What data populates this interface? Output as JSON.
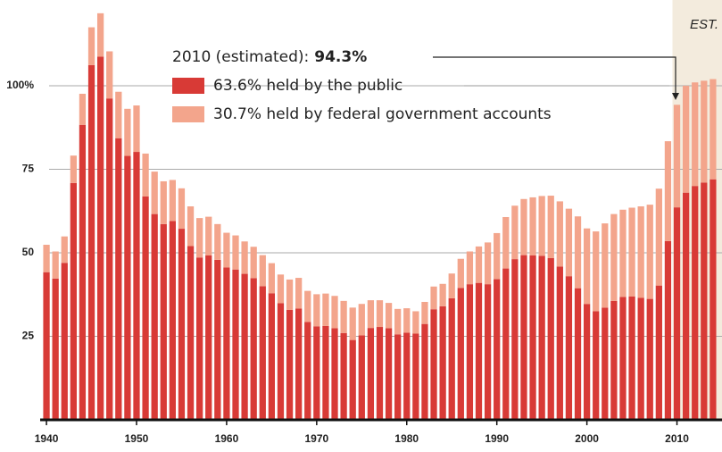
{
  "chart_data": {
    "type": "stacked_bar",
    "x": [
      1940,
      1941,
      1942,
      1943,
      1944,
      1945,
      1946,
      1947,
      1948,
      1949,
      1950,
      1951,
      1952,
      1953,
      1954,
      1955,
      1956,
      1957,
      1958,
      1959,
      1960,
      1961,
      1962,
      1963,
      1964,
      1965,
      1966,
      1967,
      1968,
      1969,
      1970,
      1971,
      1972,
      1973,
      1974,
      1975,
      1976,
      1977,
      1978,
      1979,
      1980,
      1981,
      1982,
      1983,
      1984,
      1985,
      1986,
      1987,
      1988,
      1989,
      1990,
      1991,
      1992,
      1993,
      1994,
      1995,
      1996,
      1997,
      1998,
      1999,
      2000,
      2001,
      2002,
      2003,
      2004,
      2005,
      2006,
      2007,
      2008,
      2009,
      2010,
      2011,
      2012,
      2013,
      2014
    ],
    "series": [
      {
        "name": "63.6% held by the public",
        "color": "#d83a36",
        "values": [
          44.2,
          42.3,
          47.0,
          70.9,
          88.3,
          106.2,
          108.7,
          96.2,
          84.3,
          79.0,
          80.2,
          66.9,
          61.6,
          58.6,
          59.5,
          57.2,
          52.0,
          48.6,
          49.2,
          47.9,
          45.6,
          45.0,
          43.7,
          42.4,
          40.0,
          37.9,
          34.9,
          32.9,
          33.3,
          29.3,
          28.0,
          28.1,
          27.4,
          26.0,
          23.9,
          25.3,
          27.5,
          27.8,
          27.4,
          25.6,
          26.1,
          25.8,
          28.7,
          33.1,
          34.0,
          36.4,
          39.5,
          40.6,
          41.0,
          40.6,
          42.1,
          45.3,
          48.1,
          49.3,
          49.2,
          49.1,
          48.4,
          45.9,
          43.0,
          39.4,
          34.7,
          32.5,
          33.6,
          35.6,
          36.8,
          36.9,
          36.5,
          36.2,
          40.2,
          53.5,
          63.6,
          68,
          70,
          71,
          72
        ]
      },
      {
        "name": "30.7% held by federal government accounts",
        "color": "#f3a58c",
        "values": [
          8.2,
          8.1,
          7.9,
          8.2,
          9.3,
          11.3,
          13.0,
          14.1,
          13.9,
          14.1,
          13.9,
          12.8,
          12.7,
          12.8,
          12.3,
          12.1,
          11.9,
          11.8,
          11.6,
          10.7,
          10.4,
          10.2,
          9.7,
          9.4,
          9.3,
          9.0,
          8.6,
          9.1,
          9.2,
          9.3,
          9.6,
          9.7,
          9.7,
          9.6,
          9.7,
          9.4,
          8.3,
          8.0,
          7.6,
          7.6,
          7.3,
          6.7,
          6.6,
          6.8,
          6.7,
          7.4,
          8.7,
          9.8,
          10.9,
          12.5,
          13.8,
          15.4,
          16.0,
          16.8,
          17.4,
          17.9,
          18.7,
          19.5,
          20.2,
          21.5,
          22.6,
          23.9,
          25.2,
          26.0,
          26.1,
          26.6,
          27.4,
          28.2,
          29.0,
          29.9,
          30.7,
          32,
          31,
          30.5,
          30
        ]
      }
    ],
    "annotation": {
      "label": "2010 (estimated):",
      "total": "94.3%"
    },
    "estimate_label": "EST.",
    "estimate_from": 2010,
    "xlim": [
      1939.3,
      2015
    ],
    "xticks": [
      1940,
      1950,
      1960,
      1970,
      1980,
      1990,
      2000,
      2010
    ],
    "ylim": [
      0,
      125
    ],
    "yticks": [
      25,
      50,
      75,
      {
        "value": 100,
        "label": "100%"
      }
    ],
    "grid": true
  }
}
